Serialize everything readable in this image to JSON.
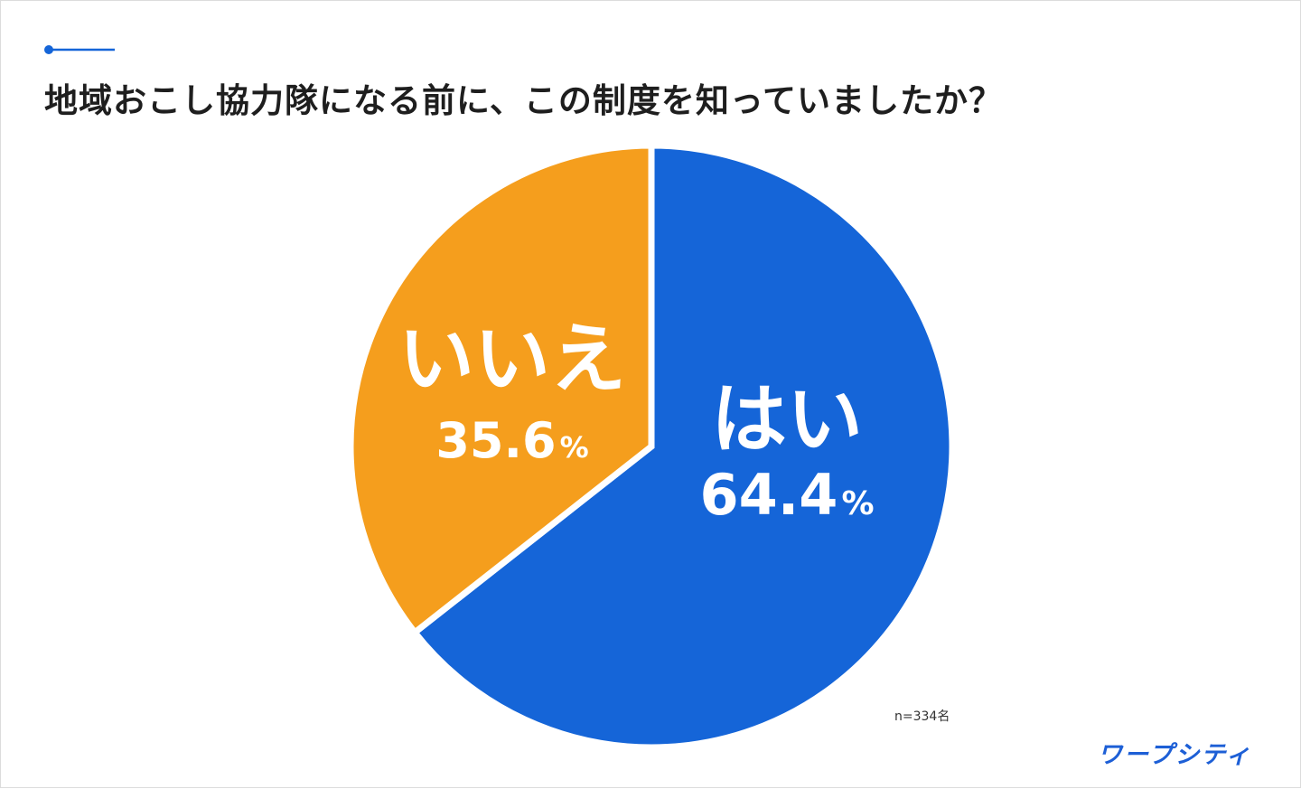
{
  "title": "地域おこし協力隊になる前に、この制度を知っていましたか？",
  "sample_note": "n=334名",
  "logo_text": "ワープシティ",
  "chart_data": {
    "type": "pie",
    "title": "地域おこし協力隊になる前に、この制度を知っていましたか？",
    "slices": [
      {
        "label": "はい",
        "value": 64.4,
        "value_text": "64.4",
        "color": "#1565d8"
      },
      {
        "label": "いいえ",
        "value": 35.6,
        "value_text": "35.6",
        "color": "#f59e1d"
      }
    ],
    "unit": "%",
    "start_angle_deg": 0,
    "direction": "clockwise"
  },
  "colors": {
    "accent": "#1565d8",
    "title_text": "#1e1e1e"
  }
}
